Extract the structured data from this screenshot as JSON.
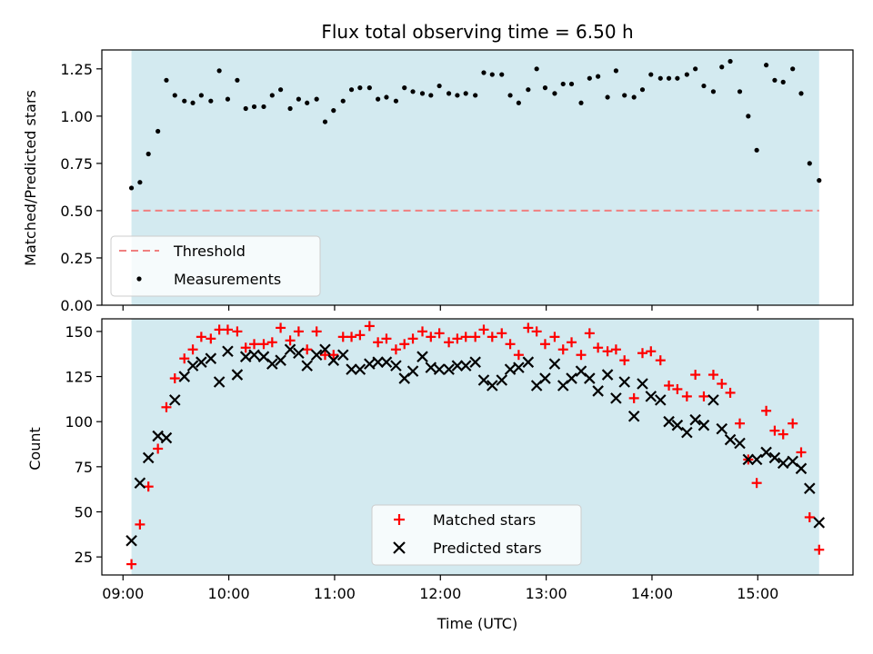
{
  "chart_data": [
    {
      "type": "scatter",
      "title": "Flux total observing time = 6.50 h",
      "xlabel": "",
      "ylabel": "Matched/Predicted stars",
      "ylim": [
        0,
        1.35
      ],
      "yticks": [
        0.0,
        0.25,
        0.5,
        0.75,
        1.0,
        1.25
      ],
      "ytick_labels": [
        "0.00",
        "0.25",
        "0.50",
        "0.75",
        "1.00",
        "1.25"
      ],
      "xlim": [
        8.8,
        15.9
      ],
      "xticks": [
        9,
        10,
        11,
        12,
        13,
        14,
        15
      ],
      "xtick_labels": [
        "",
        "",
        "",
        "",
        "",
        "",
        ""
      ],
      "shaded_span": [
        9.08,
        15.58
      ],
      "shaded_color": "#d3eaf0",
      "threshold": 0.5,
      "threshold_color": "#f08080",
      "legend": {
        "placement": "lower-left",
        "entries": [
          "Threshold",
          "Measurements"
        ]
      },
      "series": [
        {
          "name": "Measurements",
          "color": "#000000",
          "x": [
            9.08,
            9.16,
            9.24,
            9.33,
            9.41,
            9.49,
            9.58,
            9.66,
            9.74,
            9.83,
            9.91,
            9.99,
            10.08,
            10.16,
            10.24,
            10.33,
            10.41,
            10.49,
            10.58,
            10.66,
            10.74,
            10.83,
            10.91,
            10.99,
            11.08,
            11.16,
            11.24,
            11.33,
            11.41,
            11.49,
            11.58,
            11.66,
            11.74,
            11.83,
            11.91,
            11.99,
            12.08,
            12.16,
            12.24,
            12.33,
            12.41,
            12.49,
            12.58,
            12.66,
            12.74,
            12.83,
            12.91,
            12.99,
            13.08,
            13.16,
            13.24,
            13.33,
            13.41,
            13.49,
            13.58,
            13.66,
            13.74,
            13.83,
            13.91,
            13.99,
            14.08,
            14.16,
            14.24,
            14.33,
            14.41,
            14.49,
            14.58,
            14.66,
            14.74,
            14.83,
            14.91,
            14.99,
            15.08,
            15.16,
            15.24,
            15.33,
            15.41,
            15.49,
            15.58
          ],
          "y": [
            0.62,
            0.65,
            0.8,
            0.92,
            1.19,
            1.11,
            1.08,
            1.07,
            1.11,
            1.08,
            1.24,
            1.09,
            1.19,
            1.04,
            1.05,
            1.05,
            1.11,
            1.14,
            1.04,
            1.09,
            1.07,
            1.09,
            0.97,
            1.03,
            1.08,
            1.14,
            1.15,
            1.15,
            1.09,
            1.1,
            1.08,
            1.15,
            1.13,
            1.12,
            1.11,
            1.16,
            1.12,
            1.11,
            1.12,
            1.11,
            1.23,
            1.22,
            1.22,
            1.11,
            1.07,
            1.14,
            1.25,
            1.15,
            1.12,
            1.17,
            1.17,
            1.07,
            1.2,
            1.21,
            1.1,
            1.24,
            1.11,
            1.1,
            1.14,
            1.22,
            1.2,
            1.2,
            1.2,
            1.22,
            1.25,
            1.16,
            1.13,
            1.26,
            1.29,
            1.13,
            1.0,
            0.82,
            1.27,
            1.19,
            1.18,
            1.25,
            1.12,
            0.75,
            0.66
          ]
        }
      ]
    },
    {
      "type": "scatter",
      "title": "",
      "xlabel": "Time (UTC)",
      "ylabel": "Count",
      "ylim": [
        15,
        157
      ],
      "yticks": [
        25,
        50,
        75,
        100,
        125,
        150
      ],
      "ytick_labels": [
        "25",
        "50",
        "75",
        "100",
        "125",
        "150"
      ],
      "xlim": [
        8.8,
        15.9
      ],
      "xticks": [
        9,
        10,
        11,
        12,
        13,
        14,
        15
      ],
      "xtick_labels": [
        "09:00",
        "10:00",
        "11:00",
        "12:00",
        "13:00",
        "14:00",
        "15:00"
      ],
      "shaded_span": [
        9.08,
        15.58
      ],
      "shaded_color": "#d3eaf0",
      "legend": {
        "placement": "lower-center",
        "entries": [
          "Matched stars",
          "Predicted stars"
        ]
      },
      "series": [
        {
          "name": "Matched stars",
          "marker": "plus",
          "color": "#ff0000",
          "x": [
            9.08,
            9.16,
            9.24,
            9.33,
            9.41,
            9.49,
            9.58,
            9.66,
            9.74,
            9.83,
            9.91,
            9.99,
            10.08,
            10.16,
            10.24,
            10.33,
            10.41,
            10.49,
            10.58,
            10.66,
            10.74,
            10.83,
            10.91,
            10.99,
            11.08,
            11.16,
            11.24,
            11.33,
            11.41,
            11.49,
            11.58,
            11.66,
            11.74,
            11.83,
            11.91,
            11.99,
            12.08,
            12.16,
            12.24,
            12.33,
            12.41,
            12.49,
            12.58,
            12.66,
            12.74,
            12.83,
            12.91,
            12.99,
            13.08,
            13.16,
            13.24,
            13.33,
            13.41,
            13.49,
            13.58,
            13.66,
            13.74,
            13.83,
            13.91,
            13.99,
            14.08,
            14.16,
            14.24,
            14.33,
            14.41,
            14.49,
            14.58,
            14.66,
            14.74,
            14.83,
            14.91,
            14.99,
            15.08,
            15.16,
            15.24,
            15.33,
            15.41,
            15.49,
            15.58
          ],
          "y": [
            21,
            43,
            64,
            85,
            108,
            124,
            135,
            140,
            147,
            146,
            151,
            151,
            150,
            141,
            143,
            143,
            144,
            152,
            145,
            150,
            140,
            150,
            137,
            137,
            147,
            147,
            148,
            153,
            144,
            146,
            140,
            143,
            146,
            150,
            147,
            149,
            144,
            146,
            147,
            147,
            151,
            147,
            149,
            143,
            137,
            152,
            150,
            143,
            147,
            140,
            144,
            137,
            149,
            141,
            139,
            140,
            134,
            113,
            138,
            139,
            134,
            120,
            118,
            114,
            126,
            114,
            126,
            121,
            116,
            99,
            79,
            66,
            106,
            95,
            93,
            99,
            83,
            47,
            29
          ]
        },
        {
          "name": "Predicted stars",
          "marker": "x",
          "color": "#000000",
          "x": [
            9.08,
            9.16,
            9.24,
            9.33,
            9.41,
            9.49,
            9.58,
            9.66,
            9.74,
            9.83,
            9.91,
            9.99,
            10.08,
            10.16,
            10.24,
            10.33,
            10.41,
            10.49,
            10.58,
            10.66,
            10.74,
            10.83,
            10.91,
            10.99,
            11.08,
            11.16,
            11.24,
            11.33,
            11.41,
            11.49,
            11.58,
            11.66,
            11.74,
            11.83,
            11.91,
            11.99,
            12.08,
            12.16,
            12.24,
            12.33,
            12.41,
            12.49,
            12.58,
            12.66,
            12.74,
            12.83,
            12.91,
            12.99,
            13.08,
            13.16,
            13.24,
            13.33,
            13.41,
            13.49,
            13.58,
            13.66,
            13.74,
            13.83,
            13.91,
            13.99,
            14.08,
            14.16,
            14.24,
            14.33,
            14.41,
            14.49,
            14.58,
            14.66,
            14.74,
            14.83,
            14.91,
            14.99,
            15.08,
            15.16,
            15.24,
            15.33,
            15.41,
            15.49,
            15.58
          ],
          "y": [
            34,
            66,
            80,
            92,
            91,
            112,
            125,
            131,
            133,
            135,
            122,
            139,
            126,
            136,
            137,
            136,
            132,
            134,
            140,
            138,
            131,
            137,
            140,
            134,
            137,
            129,
            129,
            132,
            133,
            133,
            131,
            124,
            128,
            136,
            130,
            129,
            129,
            131,
            131,
            133,
            123,
            120,
            123,
            129,
            130,
            133,
            120,
            124,
            132,
            120,
            124,
            128,
            124,
            117,
            126,
            113,
            122,
            103,
            121,
            114,
            112,
            100,
            98,
            94,
            101,
            98,
            112,
            96,
            90,
            88,
            79,
            79,
            83,
            80,
            77,
            78,
            74,
            63,
            44
          ]
        }
      ]
    }
  ]
}
